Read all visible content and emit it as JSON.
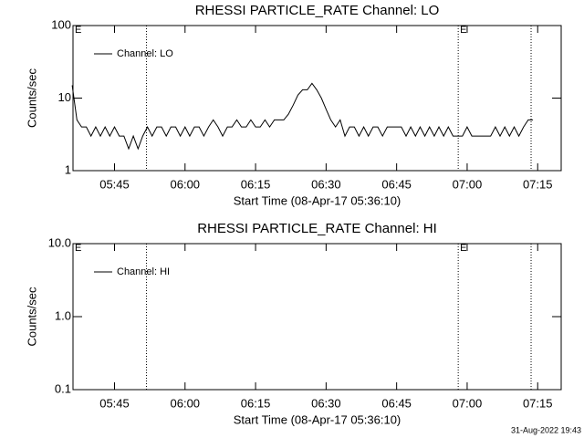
{
  "chart_data": [
    {
      "type": "line",
      "title": "RHESSI PARTICLE_RATE Channel: LO",
      "xlabel": "Start Time (08-Apr-17 05:36:10)",
      "ylabel": "Counts/sec",
      "log": true,
      "ylim": [
        1,
        100
      ],
      "yticks": [
        1,
        10,
        100
      ],
      "xlim": [
        336.17,
        440
      ],
      "xticks": [
        {
          "value": 345,
          "label": "05:45"
        },
        {
          "value": 360,
          "label": "06:00"
        },
        {
          "value": 375,
          "label": "06:15"
        },
        {
          "value": 390,
          "label": "06:30"
        },
        {
          "value": 405,
          "label": "06:45"
        },
        {
          "value": 420,
          "label": "07:00"
        },
        {
          "value": 435,
          "label": "07:15"
        }
      ],
      "vlines": [
        351.8,
        418.1,
        433.6
      ],
      "annotations": [
        {
          "text": "E",
          "x": 336.17
        },
        {
          "text": "E",
          "x": 418.1
        }
      ],
      "legend": "upper left",
      "x": [
        336,
        337,
        338,
        339,
        340,
        341,
        342,
        343,
        344,
        345,
        346,
        347,
        348,
        349,
        350,
        351,
        352,
        353,
        354,
        355,
        356,
        357,
        358,
        359,
        360,
        361,
        362,
        363,
        364,
        365,
        366,
        367,
        368,
        369,
        370,
        371,
        372,
        373,
        374,
        375,
        376,
        377,
        378,
        379,
        380,
        381,
        382,
        383,
        384,
        385,
        386,
        387,
        388,
        389,
        390,
        391,
        392,
        393,
        394,
        395,
        396,
        397,
        398,
        399,
        400,
        401,
        402,
        403,
        404,
        405,
        406,
        407,
        408,
        409,
        410,
        411,
        412,
        413,
        414,
        415,
        416,
        417,
        418,
        419,
        420,
        421,
        422,
        423,
        424,
        425,
        426,
        427,
        428,
        429,
        430,
        431,
        432,
        433,
        434
      ],
      "series": [
        {
          "name": "Channel: LO",
          "color": "#000000",
          "values": [
            15,
            5,
            4,
            4,
            3,
            4,
            3,
            4,
            3,
            4,
            3,
            3,
            2,
            3,
            2,
            3,
            4,
            3,
            4,
            4,
            3,
            4,
            4,
            3,
            4,
            3,
            4,
            4,
            3,
            4,
            5,
            4,
            3,
            4,
            4,
            5,
            4,
            4,
            5,
            4,
            4,
            5,
            4,
            5,
            5,
            5,
            6,
            8,
            11,
            13,
            13,
            16,
            13,
            10,
            7,
            5,
            4,
            5,
            3,
            4,
            4,
            3,
            4,
            3,
            4,
            4,
            3,
            4,
            4,
            4,
            4,
            3,
            4,
            3,
            4,
            3,
            4,
            3,
            4,
            3,
            4,
            3,
            3,
            3,
            4,
            3,
            3,
            3,
            3,
            3,
            4,
            3,
            4,
            3,
            4,
            3,
            4,
            5,
            5
          ]
        }
      ]
    },
    {
      "type": "line",
      "title": "RHESSI PARTICLE_RATE Channel: HI",
      "xlabel": "Start Time (08-Apr-17 05:36:10)",
      "ylabel": "Counts/sec",
      "log": true,
      "ylim": [
        0.1,
        10
      ],
      "yticks": [
        0.1,
        {
          "value": 1,
          "label": "1.0"
        },
        {
          "value": 10,
          "label": "10.0"
        }
      ],
      "xlim": [
        336.17,
        440
      ],
      "xticks": [
        {
          "value": 345,
          "label": "05:45"
        },
        {
          "value": 360,
          "label": "06:00"
        },
        {
          "value": 375,
          "label": "06:15"
        },
        {
          "value": 390,
          "label": "06:30"
        },
        {
          "value": 405,
          "label": "06:45"
        },
        {
          "value": 420,
          "label": "07:00"
        },
        {
          "value": 435,
          "label": "07:15"
        }
      ],
      "vlines": [
        351.8,
        418.1,
        433.6
      ],
      "annotations": [
        {
          "text": "E",
          "x": 336.17
        },
        {
          "text": "E",
          "x": 418.1
        }
      ],
      "legend": "upper left",
      "x": [],
      "series": [
        {
          "name": "Channel: HI",
          "color": "#000000",
          "values": []
        }
      ]
    }
  ],
  "footer": "31-Aug-2022 19:43"
}
